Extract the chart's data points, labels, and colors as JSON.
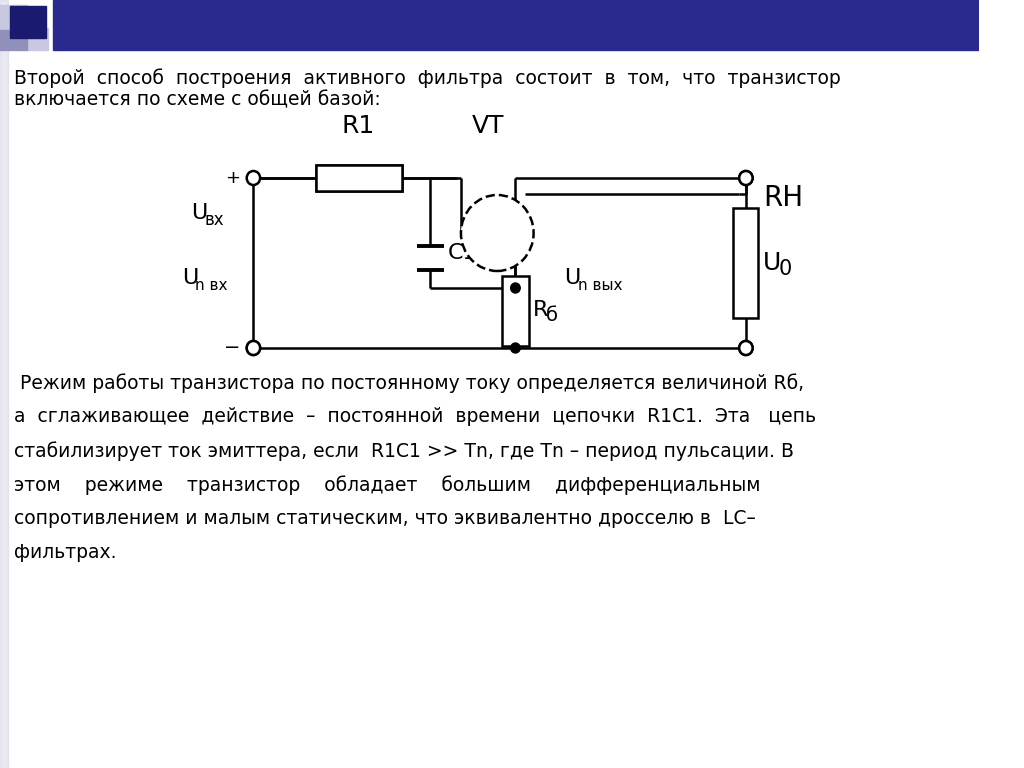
{
  "bg_color": "#ffffff",
  "header_dark1": "#1a1a6e",
  "header_dark2": "#2a2a8e",
  "header_light1": "#c8c8e0",
  "header_light2": "#9090bb",
  "title_line1": "Второй  способ  построения  активного  фильтра  состоит  в  том,  что  транзистор",
  "title_line2": "включается по схеме с общей базой:",
  "body_lines": [
    " Режим работы транзистора по постоянному току определяется величиной Rб,",
    "а  сглаживающее  действие  –  постоянной  времени  цепочки  R1C1.  Эта   цепь",
    "стабилизирует ток эмиттера, если  R1C1 >> Tn, где Tn – период пульсации. В",
    "этом    режиме    транзистор    обладает    большим    дифференциальным",
    "сопротивлением и малым статическим, что эквивалентно дросселю в  LC–",
    "фильтрах."
  ],
  "font_size_title": 13.5,
  "font_size_body": 13.5,
  "lw": 1.8
}
